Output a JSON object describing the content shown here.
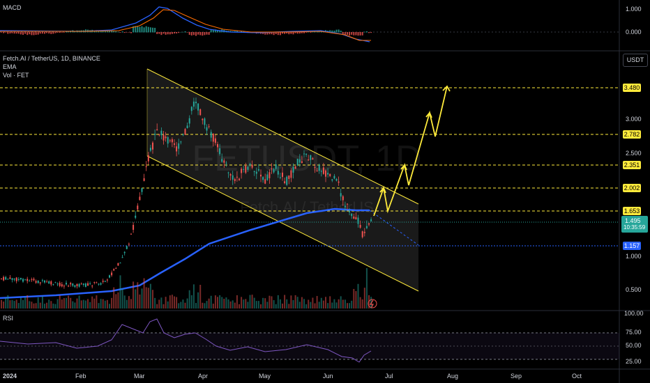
{
  "macd": {
    "label": "MACD",
    "ticks": [
      "1.000",
      "0.000"
    ]
  },
  "legend": {
    "symbol": "Fetch.AI / TetherUS, 1D, BINANCE",
    "ema": "EMA",
    "vol": "Vol · FET"
  },
  "watermark": {
    "main": "FETUSDT, 1D",
    "sub": "Fetch.AI / TetherUS"
  },
  "currency_button": "USDT",
  "price_axis": {
    "ticks": [
      "3.000",
      "2.500",
      "1.000",
      "0.500"
    ],
    "levels": [
      {
        "label": "3.480",
        "color": "#ffeb3b"
      },
      {
        "label": "2.782",
        "color": "#ffeb3b"
      },
      {
        "label": "2.351",
        "color": "#ffeb3b"
      },
      {
        "label": "2.002",
        "color": "#ffeb3b"
      },
      {
        "label": "1.653",
        "color": "#ffeb3b"
      },
      {
        "label": "1.157",
        "color": "#2962ff"
      }
    ],
    "current_price": "1.495",
    "countdown": "10:35:59",
    "current_color": "#26a69a"
  },
  "rsi": {
    "label": "RSI",
    "ticks": [
      "100.00",
      "75.00",
      "50.00",
      "25.00"
    ]
  },
  "time_axis": [
    "2024",
    "Feb",
    "Mar",
    "Apr",
    "May",
    "Jun",
    "Jul",
    "Aug",
    "Sep",
    "Oct"
  ],
  "colors": {
    "up": "#26a69a",
    "down": "#ef5350",
    "ema": "#2962ff",
    "channel": "#ffeb3b",
    "projection": "#ffeb3b",
    "rsi": "#7e57c2"
  }
}
